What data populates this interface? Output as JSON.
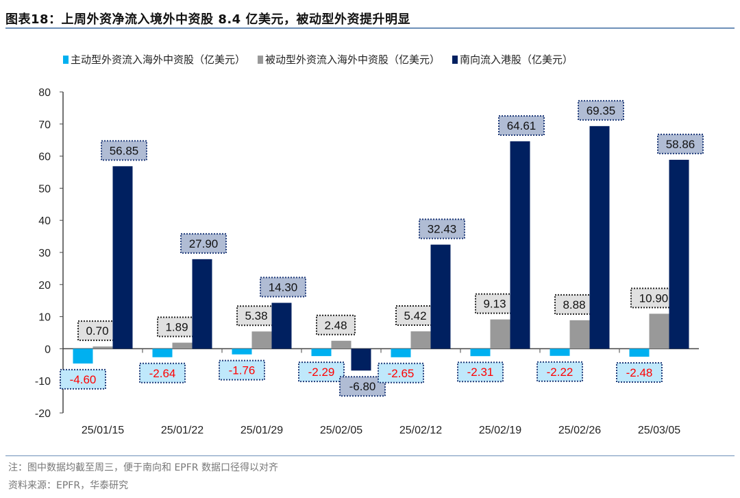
{
  "title": "图表18：上周外资净流入境外中资股 8.4 亿美元，被动型外资提升明显",
  "note": "注：图中数据均截至周三，便于南向和 EPFR 数据口径得以对齐",
  "source": "资料来源：EPFR，华泰研究",
  "chart_data": {
    "type": "bar",
    "categories": [
      "25/01/15",
      "25/01/22",
      "25/01/29",
      "25/02/05",
      "25/02/12",
      "25/02/19",
      "25/02/26",
      "25/03/05"
    ],
    "series": [
      {
        "name": "主动型外资流入海外中资股（亿美元）",
        "color": "#00b0f0",
        "values": [
          -4.6,
          -2.64,
          -1.76,
          -2.29,
          -2.65,
          -2.31,
          -2.22,
          -2.48
        ]
      },
      {
        "name": "被动型外资流入海外中资股（亿美元）",
        "color": "#999999",
        "values": [
          0.7,
          1.89,
          5.38,
          2.48,
          5.42,
          9.13,
          8.88,
          10.9
        ]
      },
      {
        "name": "南向流入港股（亿美元）",
        "color": "#002060",
        "values": [
          56.85,
          27.9,
          14.3,
          -6.8,
          32.43,
          64.61,
          69.35,
          58.86
        ]
      }
    ],
    "ylim": [
      -20,
      80
    ],
    "yticks": [
      -20,
      -10,
      0,
      10,
      20,
      30,
      40,
      50,
      60,
      70,
      80
    ],
    "legend": "top",
    "grid": false,
    "label_colors": {
      "series0_text": "#ff0000",
      "series0_box": "#bfe8fb",
      "series1_box": "#e0e0e0",
      "series2_box": "#b0bcd4"
    }
  }
}
